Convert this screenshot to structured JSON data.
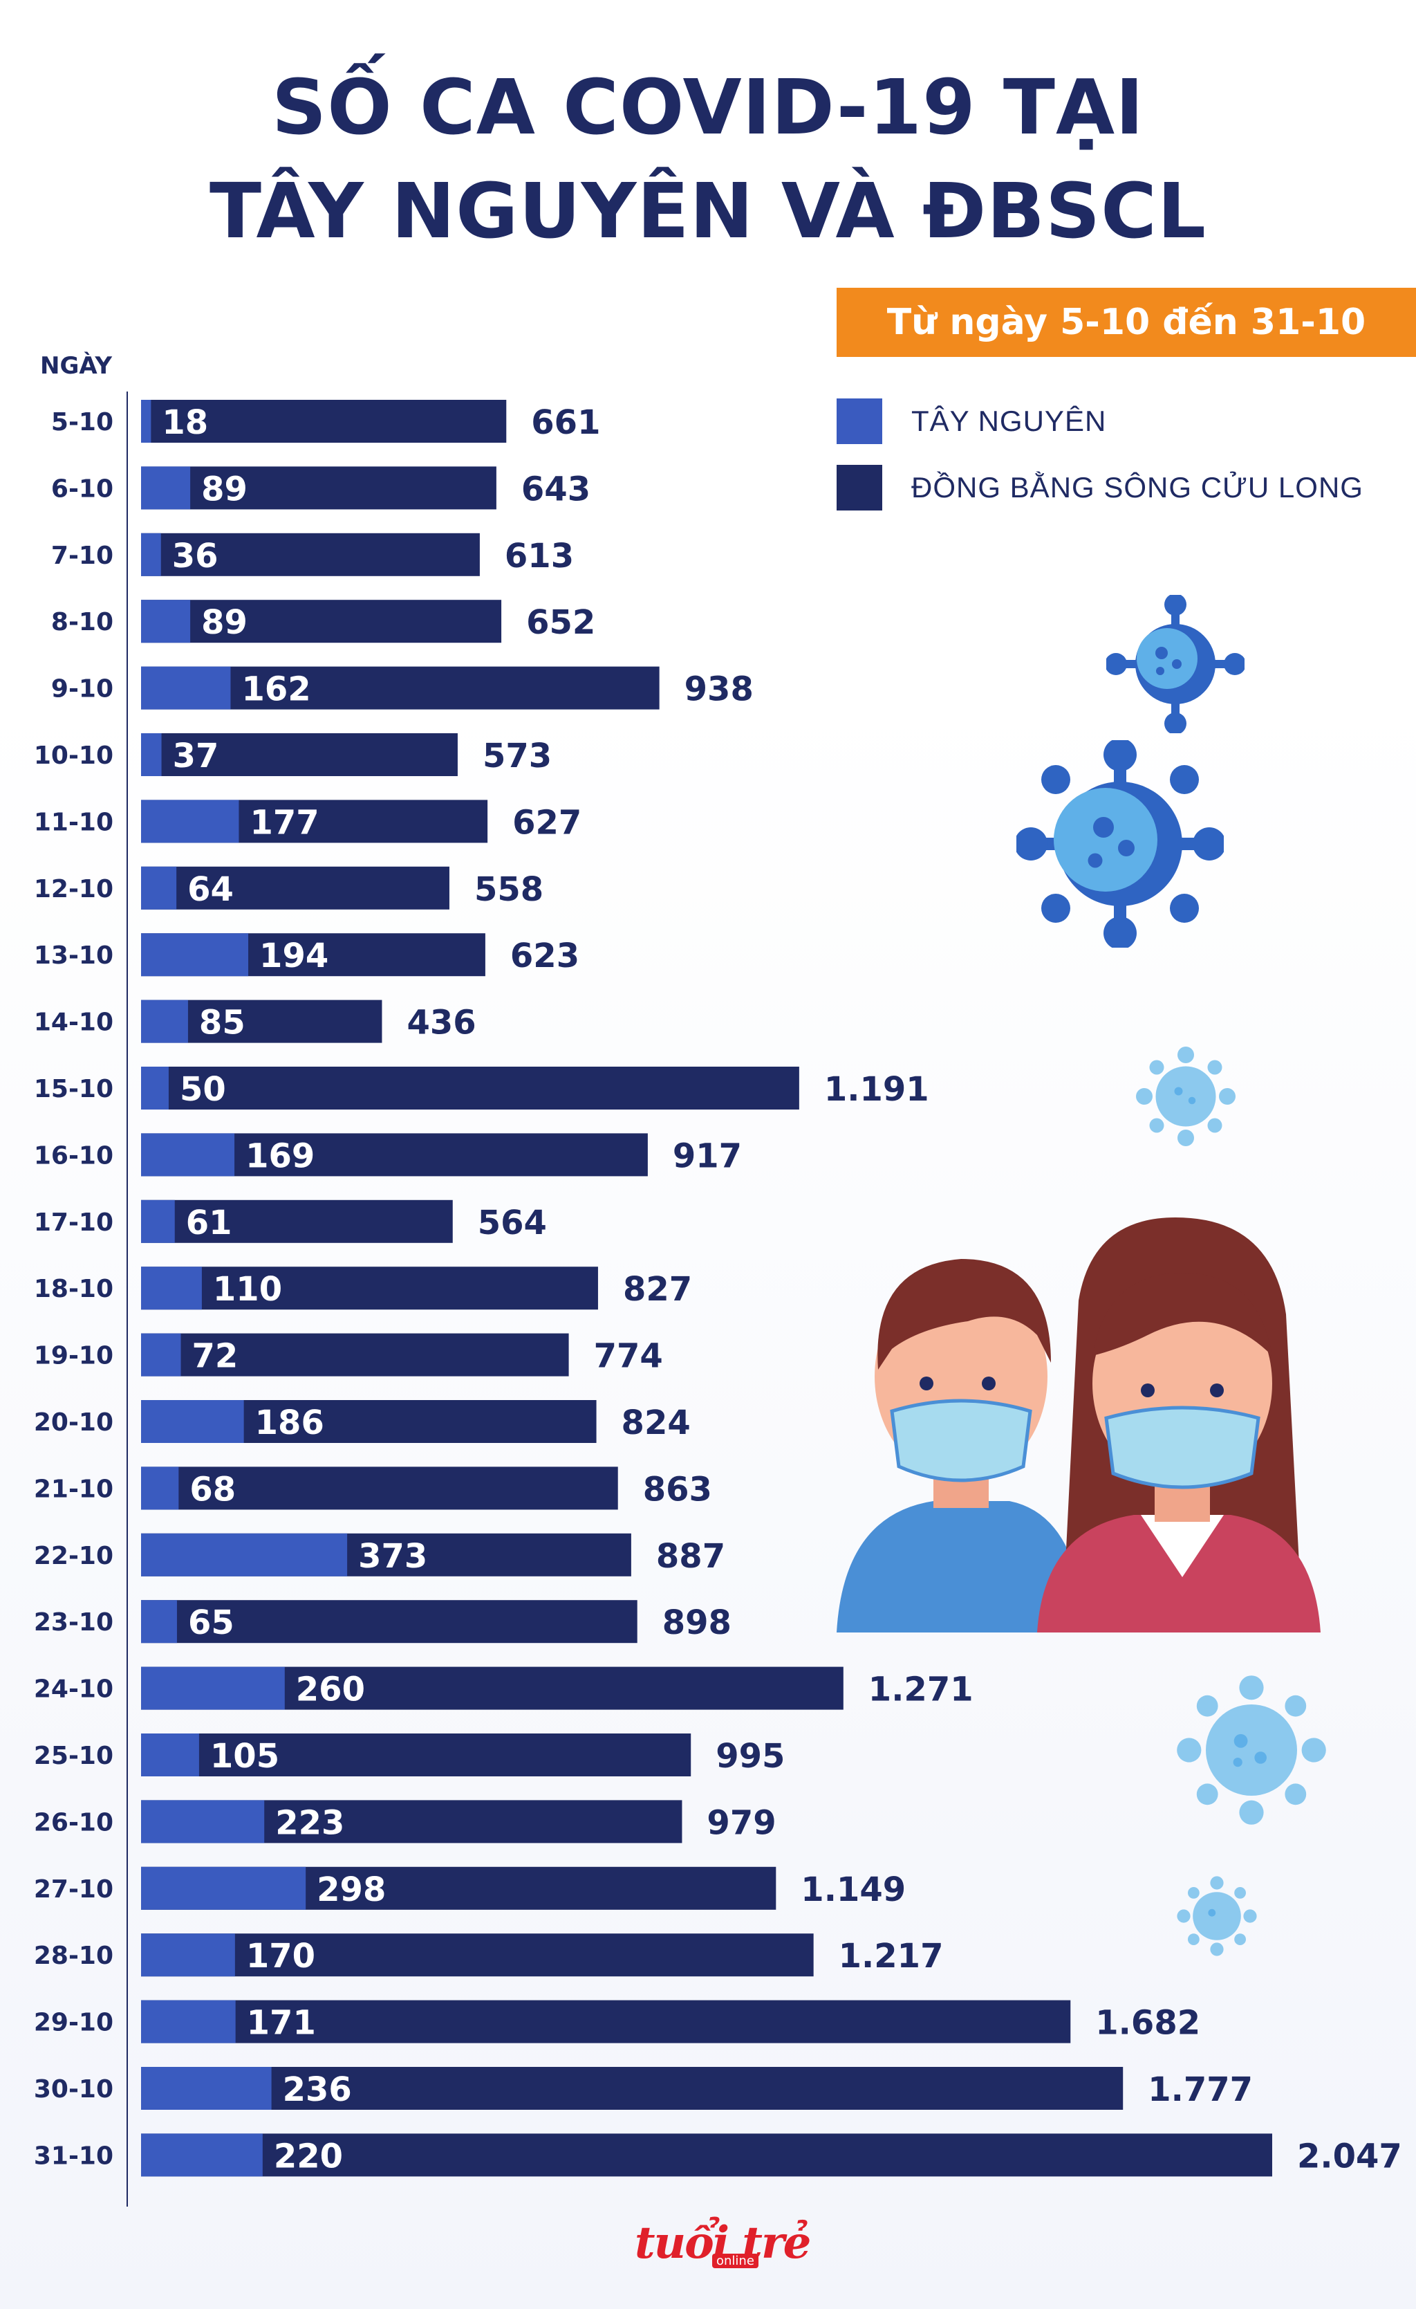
{
  "title": {
    "line1": "SỐ CA COVID-19 TẠI",
    "line2": "TÂY NGUYÊN VÀ ĐBSCL"
  },
  "period": "Từ ngày 5-10 đến 31-10",
  "legend": [
    {
      "label": "TÂY NGUYÊN",
      "color": "#3a5bbf"
    },
    {
      "label": "ĐỒNG BẰNG SÔNG CỬU LONG",
      "color": "#1f2a63"
    }
  ],
  "logo": {
    "text": "tuổi trẻ",
    "sub": "online"
  },
  "colors": {
    "title": "#1f2a63",
    "tay_nguyen": "#3a5bbf",
    "dbscl": "#1f2a63",
    "period_bg": "#f28a1d"
  },
  "chart_data": {
    "type": "bar",
    "orientation": "horizontal",
    "ylabel": "NGÀY",
    "categories": [
      "5-10",
      "6-10",
      "7-10",
      "8-10",
      "9-10",
      "10-10",
      "11-10",
      "12-10",
      "13-10",
      "14-10",
      "15-10",
      "16-10",
      "17-10",
      "18-10",
      "19-10",
      "20-10",
      "21-10",
      "22-10",
      "23-10",
      "24-10",
      "25-10",
      "26-10",
      "27-10",
      "28-10",
      "29-10",
      "30-10",
      "31-10"
    ],
    "series": [
      {
        "name": "TÂY NGUYÊN",
        "values": [
          18,
          89,
          36,
          89,
          162,
          37,
          177,
          64,
          194,
          85,
          50,
          169,
          61,
          110,
          72,
          186,
          68,
          373,
          65,
          260,
          105,
          223,
          298,
          170,
          171,
          236,
          220
        ],
        "labels": [
          "18",
          "89",
          "36",
          "89",
          "162",
          "37",
          "177",
          "64",
          "194",
          "85",
          "50",
          "169",
          "61",
          "110",
          "72",
          "186",
          "68",
          "373",
          "65",
          "260",
          "105",
          "223",
          "298",
          "170",
          "171",
          "236",
          "220"
        ]
      },
      {
        "name": "ĐỒNG BẰNG SÔNG CỬU LONG",
        "values": [
          661,
          643,
          613,
          652,
          938,
          573,
          627,
          558,
          623,
          436,
          1191,
          917,
          564,
          827,
          774,
          824,
          863,
          887,
          898,
          1271,
          995,
          979,
          1149,
          1217,
          1682,
          1777,
          2047
        ],
        "labels": [
          "661",
          "643",
          "613",
          "652",
          "938",
          "573",
          "627",
          "558",
          "623",
          "436",
          "1.191",
          "917",
          "564",
          "827",
          "774",
          "824",
          "863",
          "887",
          "898",
          "1.271",
          "995",
          "979",
          "1.149",
          "1.217",
          "1.682",
          "1.777",
          "2.047"
        ]
      }
    ],
    "xlim": [
      0,
      2047
    ],
    "grid": false,
    "legend_position": "top-right"
  }
}
